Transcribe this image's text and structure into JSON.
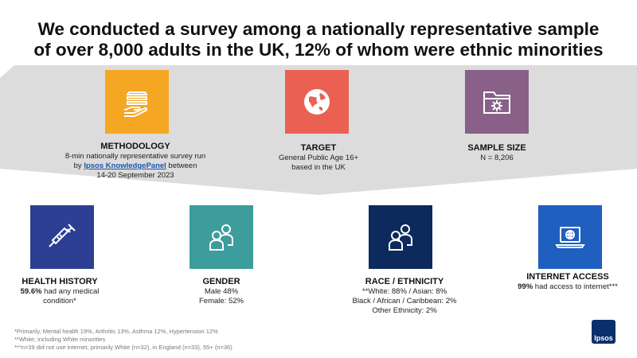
{
  "title": {
    "line1": "We conducted a survey among a nationally representative sample",
    "line2": "of over 8,000 adults in the UK, 12% of whom were ethnic minorities"
  },
  "top_cards": [
    {
      "icon": "layers-hand-icon",
      "color": "#f5a623",
      "heading": "METHODOLOGY",
      "line1": "8-min nationally representative survey run",
      "by": "by ",
      "link": "Ipsos KnowledgePanel",
      "after": " between",
      "line3": "14-20 September 2023"
    },
    {
      "icon": "globe-icon",
      "color": "#ea6153",
      "heading": "TARGET",
      "line1": "General Public Age 16+",
      "line2": "based in the UK"
    },
    {
      "icon": "folder-gear-icon",
      "color": "#886088",
      "heading": "SAMPLE SIZE",
      "line1": "N = 8,206"
    }
  ],
  "bottom_cards": [
    {
      "icon": "syringe-icon",
      "color": "#2c3f93",
      "heading": "HEALTH HISTORY",
      "bold": "59.6%",
      "line1": " had any medical",
      "line2": "condition*"
    },
    {
      "icon": "people-icon",
      "color": "#3d9d9d",
      "heading": "GENDER",
      "line1": "Male 48%",
      "line2": "Female: 52%"
    },
    {
      "icon": "people-icon",
      "color": "#0d2a5c",
      "heading": "RACE / ETHNICITY",
      "line1": "**White: 88% / Asian: 8%",
      "line2": "Black / African / Caribbean: 2%",
      "line3": "Other Ethnicity: 2%"
    },
    {
      "icon": "laptop-globe-icon",
      "color": "#1f5fbf",
      "heading": "INTERNET ACCESS",
      "bold": "99%",
      "line1": " had access to internet***"
    }
  ],
  "footnotes": [
    "*Primarily, Mental health 19%, Arthritis 13%, Asthma 12%, Hypertension 12%",
    "**White; including White minorities",
    "***n=39 did not use internet, primarily White (n=32), in England (n=33), 55+ (n=36)"
  ],
  "logo": "Ipsos"
}
